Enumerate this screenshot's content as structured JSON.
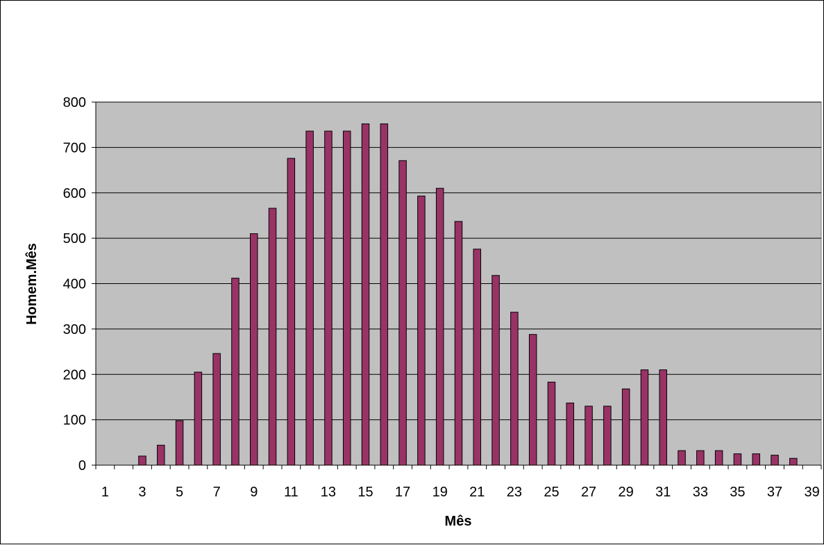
{
  "chart_data": {
    "type": "bar",
    "title": "",
    "xlabel": "Mês",
    "ylabel": "Homem.Mês",
    "ylim": [
      0,
      800
    ],
    "yticks": [
      0,
      100,
      200,
      300,
      400,
      500,
      600,
      700,
      800
    ],
    "categories": [
      1,
      2,
      3,
      4,
      5,
      6,
      7,
      8,
      9,
      10,
      11,
      12,
      13,
      14,
      15,
      16,
      17,
      18,
      19,
      20,
      21,
      22,
      23,
      24,
      25,
      26,
      27,
      28,
      29,
      30,
      31,
      32,
      33,
      34,
      35,
      36,
      37,
      38,
      39
    ],
    "xtick_labels_shown": [
      "1",
      "3",
      "5",
      "7",
      "9",
      "11",
      "13",
      "15",
      "17",
      "19",
      "21",
      "23",
      "25",
      "27",
      "29",
      "31",
      "33",
      "35",
      "37",
      "39"
    ],
    "values": [
      0,
      0,
      20,
      44,
      98,
      205,
      246,
      412,
      510,
      566,
      676,
      736,
      736,
      736,
      752,
      752,
      671,
      593,
      610,
      537,
      476,
      418,
      337,
      288,
      183,
      137,
      130,
      130,
      168,
      210,
      210,
      32,
      32,
      32,
      25,
      25,
      22,
      15,
      0
    ],
    "grid": true,
    "colors": {
      "bar_fill": "#993366",
      "bar_stroke": "#000000",
      "plot_bg": "#c0c0c0",
      "gridline": "#000000"
    }
  }
}
